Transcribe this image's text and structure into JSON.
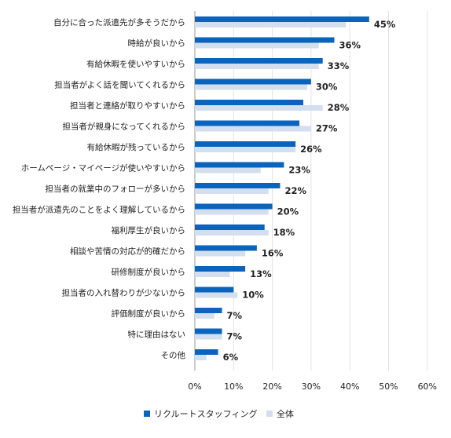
{
  "chart_data": {
    "type": "bar",
    "orientation": "horizontal",
    "categories": [
      "自分に合った派遣先が多そうだから",
      "時給が良いから",
      "有給休暇を使いやすいから",
      "担当者がよく話を聞いてくれるから",
      "担当者と連絡が取りやすいから",
      "担当者が親身になってくれるから",
      "有給休暇が残っているから",
      "ホームページ・マイページが使いやすいから",
      "担当者の就業中のフォローが多いから",
      "担当者が派遣先のことをよく理解しているから",
      "福利厚生が良いから",
      "相談や苦情の対応が的確だから",
      "研修制度が良いから",
      "担当者の入れ替わりが少ないから",
      "評価制度が良いから",
      "特に理由はない",
      "その他"
    ],
    "series": [
      {
        "name": "リクルートスタッフィング",
        "color": "#0a64be",
        "values": [
          45,
          36,
          33,
          30,
          28,
          27,
          26,
          23,
          22,
          20,
          18,
          16,
          13,
          10,
          7,
          7,
          6
        ],
        "labels": [
          "45%",
          "36%",
          "33%",
          "30%",
          "28%",
          "27%",
          "26%",
          "23%",
          "22%",
          "20%",
          "18%",
          "16%",
          "13%",
          "10%",
          "7%",
          "7%",
          "6%"
        ]
      },
      {
        "name": "全体",
        "color": "#d3deef",
        "values": [
          39,
          32,
          32,
          29,
          33,
          30,
          26,
          17,
          19,
          19,
          19,
          13,
          9,
          11,
          5,
          7,
          3
        ]
      }
    ],
    "xlim": [
      0,
      60
    ],
    "xticks": [
      "0%",
      "10%",
      "20%",
      "30%",
      "40%",
      "50%",
      "60%"
    ],
    "grid": "vertical",
    "legend": "bottom-center"
  }
}
